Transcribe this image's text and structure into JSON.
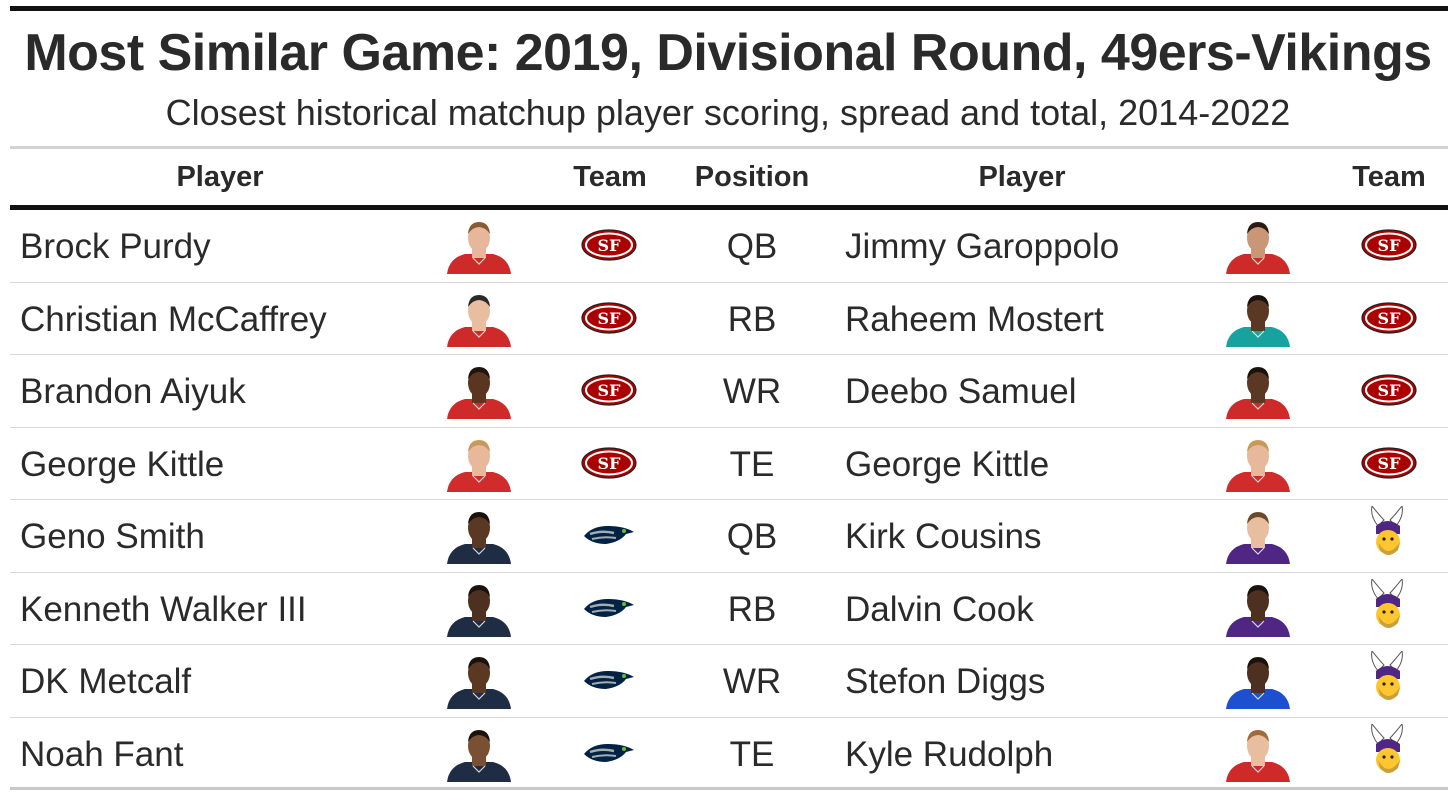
{
  "title": "Most Similar Game: 2019, Divisional Round, 49ers-Vikings",
  "subtitle": "Closest historical matchup player scoring, spread and total, 2014-2022",
  "columns": {
    "player_current": "Player",
    "team_current": "Team",
    "position": "Position",
    "player_historical": "Player",
    "team_historical": "Team"
  },
  "rows": [
    {
      "player": "Brock Purdy",
      "team": "SF",
      "position": "QB",
      "match_player": "Jimmy Garoppolo",
      "match_team": "SF"
    },
    {
      "player": "Christian McCaffrey",
      "team": "SF",
      "position": "RB",
      "match_player": "Raheem Mostert",
      "match_team": "SF"
    },
    {
      "player": "Brandon Aiyuk",
      "team": "SF",
      "position": "WR",
      "match_player": "Deebo Samuel",
      "match_team": "SF"
    },
    {
      "player": "George Kittle",
      "team": "SF",
      "position": "TE",
      "match_player": "George Kittle",
      "match_team": "SF"
    },
    {
      "player": "Geno Smith",
      "team": "SEA",
      "position": "QB",
      "match_player": "Kirk Cousins",
      "match_team": "MIN"
    },
    {
      "player": "Kenneth Walker III",
      "team": "SEA",
      "position": "RB",
      "match_player": "Dalvin Cook",
      "match_team": "MIN"
    },
    {
      "player": "DK Metcalf",
      "team": "SEA",
      "position": "WR",
      "match_player": "Stefon Diggs",
      "match_team": "MIN"
    },
    {
      "player": "Noah Fant",
      "team": "SEA",
      "position": "TE",
      "match_player": "Kyle Rudolph",
      "match_team": "MIN"
    }
  ],
  "headshots": [
    {
      "jersey": "#cf2a2a",
      "skin": "#e6b79a",
      "hair": "#8a5a32"
    },
    {
      "jersey": "#cf2a2a",
      "skin": "#e9bea0",
      "hair": "#2a2a2a"
    },
    {
      "jersey": "#cf2a2a",
      "skin": "#5a3520",
      "hair": "#1f1410"
    },
    {
      "jersey": "#d22b2b",
      "skin": "#e7b89a",
      "hair": "#c79a5a"
    },
    {
      "jersey": "#1f2d44",
      "skin": "#5b3823",
      "hair": "#1a120d"
    },
    {
      "jersey": "#1f2d44",
      "skin": "#4e3020",
      "hair": "#1a120d"
    },
    {
      "jersey": "#1f2d44",
      "skin": "#5a3822",
      "hair": "#1a120d"
    },
    {
      "jersey": "#1f2d44",
      "skin": "#7a5035",
      "hair": "#1a120d"
    }
  ],
  "match_headshots": [
    {
      "jersey": "#cf2a2a",
      "skin": "#c99676",
      "hair": "#2a1a12"
    },
    {
      "jersey": "#17a2a0",
      "skin": "#5b3823",
      "hair": "#1a120d"
    },
    {
      "jersey": "#cf2a2a",
      "skin": "#5a3822",
      "hair": "#1a120d"
    },
    {
      "jersey": "#d22b2b",
      "skin": "#e7b89a",
      "hair": "#c79a5a"
    },
    {
      "jersey": "#4f2683",
      "skin": "#e9bea0",
      "hair": "#6b4a2a"
    },
    {
      "jersey": "#4f2683",
      "skin": "#4e3020",
      "hair": "#1a120d"
    },
    {
      "jersey": "#1d4fd1",
      "skin": "#4e3020",
      "hair": "#1a120d"
    },
    {
      "jersey": "#cf2a2a",
      "skin": "#e9bea0",
      "hair": "#a06a3a"
    }
  ],
  "team_colors": {
    "SF": {
      "primary": "#aa0000",
      "secondary": "#b3995d"
    },
    "SEA": {
      "primary": "#002244",
      "secondary": "#69be28",
      "gray": "#a5acaf"
    },
    "MIN": {
      "primary": "#4f2683",
      "secondary": "#ffc62f"
    }
  },
  "icons": {
    "SF": "49ers-logo-icon",
    "SEA": "seahawks-logo-icon",
    "MIN": "vikings-logo-icon"
  }
}
